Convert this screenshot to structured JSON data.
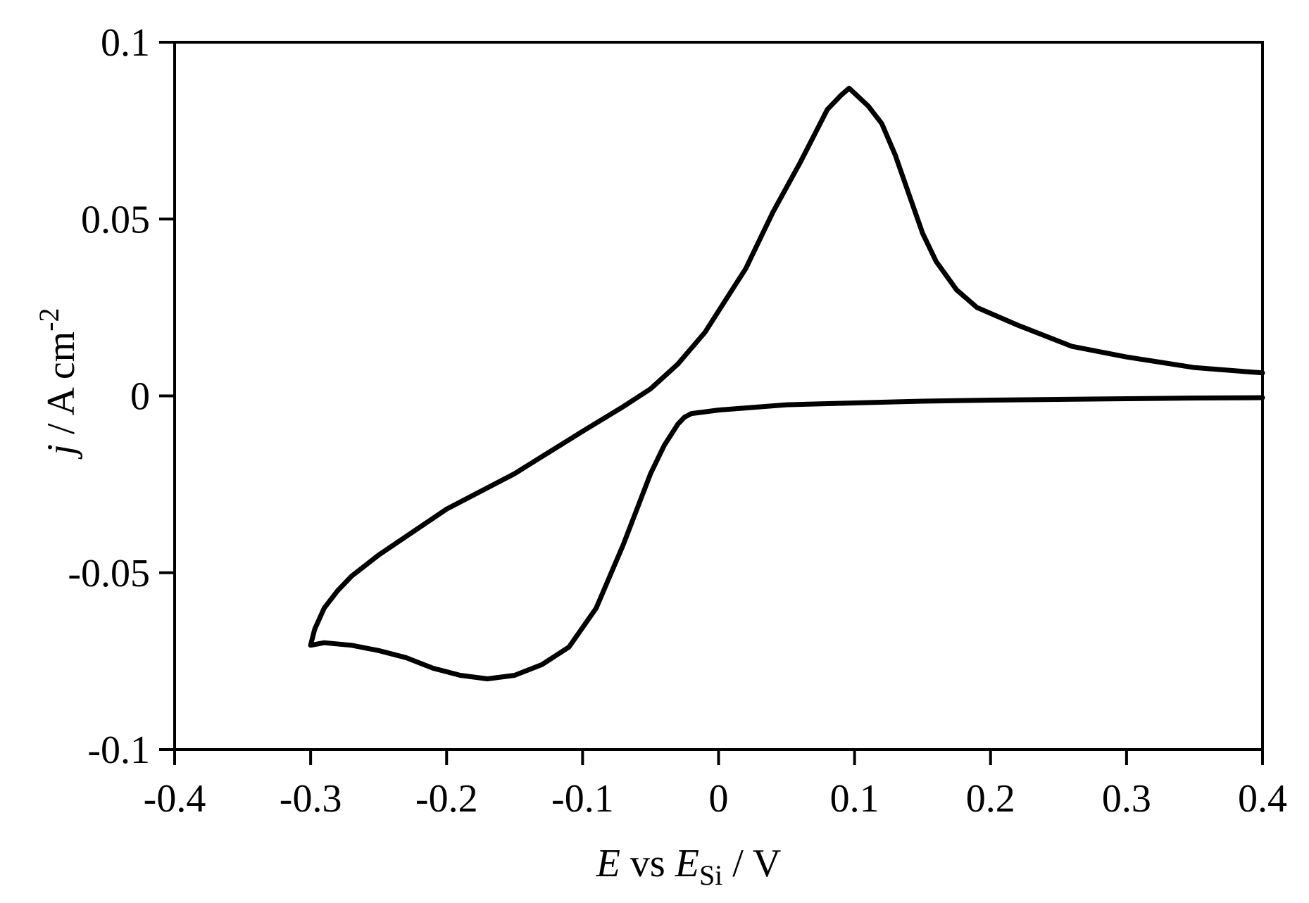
{
  "chart_data": {
    "type": "line",
    "title": "",
    "xlabel": {
      "var": "E",
      "mid": " vs ",
      "ref": "E",
      "ref_sub": "Si",
      "unit": " / V"
    },
    "ylabel": {
      "var": "j",
      "unit": " / A cm",
      "unit_sup": "-2"
    },
    "xlim": [
      -0.4,
      0.4
    ],
    "ylim": [
      -0.1,
      0.1
    ],
    "xticks": [
      -0.4,
      -0.3,
      -0.2,
      -0.1,
      0,
      0.1,
      0.2,
      0.3,
      0.4
    ],
    "xtick_labels": [
      "-0.4",
      "-0.3",
      "-0.2",
      "-0.1",
      "0",
      "0.1",
      "0.2",
      "0.3",
      "0.4"
    ],
    "yticks": [
      -0.1,
      -0.05,
      0,
      0.05,
      0.1
    ],
    "ytick_labels": [
      "-0.1",
      "-0.05",
      "0",
      "0.05",
      "0.1"
    ],
    "grid": false,
    "legend": "none",
    "line_color": "#000000",
    "series": [
      {
        "x": [
          0.4,
          0.35,
          0.3,
          0.25,
          0.2,
          0.15,
          0.1,
          0.05,
          0.0,
          -0.02,
          -0.025,
          -0.03,
          -0.04,
          -0.05,
          -0.07,
          -0.09,
          -0.11,
          -0.13,
          -0.15,
          -0.17,
          -0.19,
          -0.21,
          -0.23,
          -0.25,
          -0.27,
          -0.29,
          -0.3,
          -0.297,
          -0.29,
          -0.28,
          -0.27,
          -0.25,
          -0.2,
          -0.15,
          -0.1,
          -0.07,
          -0.05,
          -0.03,
          -0.01,
          0.0,
          0.02,
          0.04,
          0.06,
          0.08,
          0.09,
          0.096,
          0.11,
          0.12,
          0.13,
          0.14,
          0.15,
          0.16,
          0.175,
          0.19,
          0.22,
          0.26,
          0.3,
          0.35,
          0.4
        ],
        "y": [
          -0.0005,
          -0.0006,
          -0.0008,
          -0.001,
          -0.0012,
          -0.0015,
          -0.002,
          -0.0025,
          -0.004,
          -0.005,
          -0.006,
          -0.008,
          -0.014,
          -0.022,
          -0.042,
          -0.06,
          -0.071,
          -0.076,
          -0.079,
          -0.08,
          -0.079,
          -0.077,
          -0.074,
          -0.072,
          -0.0705,
          -0.0698,
          -0.0705,
          -0.066,
          -0.06,
          -0.055,
          -0.051,
          -0.045,
          -0.032,
          -0.022,
          -0.01,
          -0.003,
          0.002,
          0.009,
          0.018,
          0.024,
          0.036,
          0.052,
          0.066,
          0.081,
          0.085,
          0.087,
          0.082,
          0.077,
          0.068,
          0.057,
          0.046,
          0.038,
          0.03,
          0.025,
          0.02,
          0.014,
          0.011,
          0.008,
          0.0065
        ]
      }
    ]
  }
}
